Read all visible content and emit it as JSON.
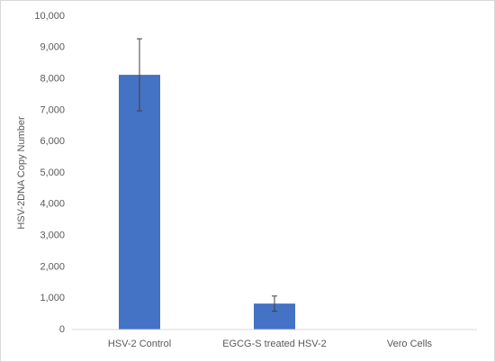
{
  "chart_data": {
    "type": "bar",
    "y_label": "HSV-2DNA Copy Number",
    "categories": [
      "HSV-2 Control",
      "EGCG-S treated HSV-2",
      "Vero Cells"
    ],
    "values": [
      8130,
      830,
      0
    ],
    "errors": [
      1150,
      240,
      0
    ],
    "color": "#4472c4",
    "ylim": [
      0,
      10000
    ],
    "yticks": [
      0,
      {
        "value": 1000,
        "label": "1,000"
      },
      {
        "value": 2000,
        "label": "2,000"
      },
      {
        "value": 3000,
        "label": "3,000"
      },
      {
        "value": 4000,
        "label": "4,000"
      },
      {
        "value": 5000,
        "label": "5,000"
      },
      {
        "value": 6000,
        "label": "6,000"
      },
      {
        "value": 7000,
        "label": "7,000"
      },
      {
        "value": 8000,
        "label": "8,000"
      },
      {
        "value": 9000,
        "label": "9,000"
      },
      {
        "value": 10000,
        "label": "10,000"
      }
    ],
    "grid": false
  }
}
